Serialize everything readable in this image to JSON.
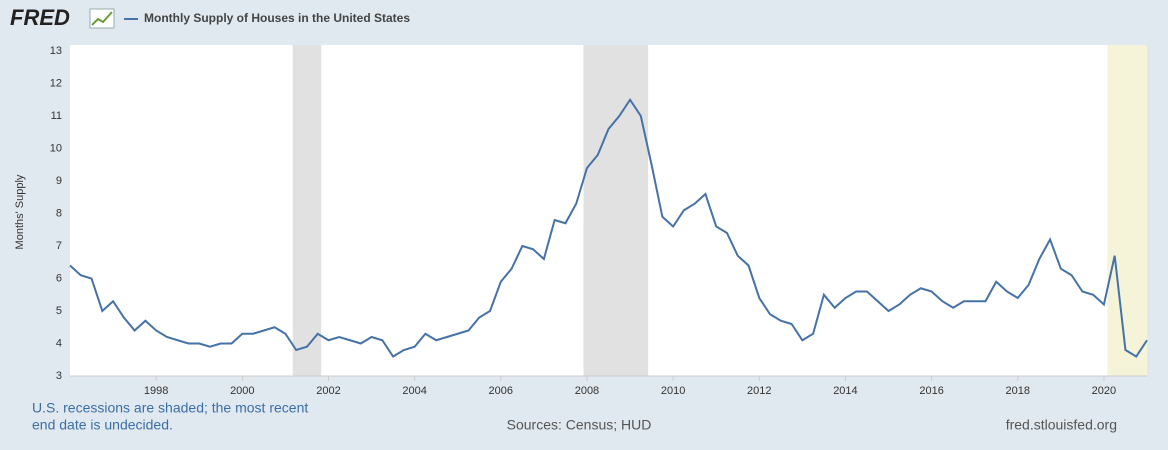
{
  "logo": "FRED",
  "chart_data": {
    "type": "line",
    "y_label": "Months' Supply",
    "series": [
      {
        "name": "Monthly Supply of Houses in the United States",
        "color": "#4572a7",
        "values": [
          6.4,
          6.1,
          6.0,
          5.0,
          5.3,
          4.8,
          4.4,
          4.7,
          4.4,
          4.2,
          4.1,
          4.0,
          4.0,
          3.9,
          4.0,
          4.0,
          4.3,
          4.3,
          4.4,
          4.5,
          4.3,
          3.8,
          3.9,
          4.3,
          4.1,
          4.2,
          4.1,
          4.0,
          4.2,
          4.1,
          3.6,
          3.8,
          3.9,
          4.3,
          4.1,
          4.2,
          4.3,
          4.4,
          4.8,
          5.0,
          5.9,
          6.3,
          7.0,
          6.9,
          6.6,
          7.8,
          7.7,
          8.3,
          9.4,
          9.8,
          10.6,
          11.0,
          11.5,
          11.0,
          9.5,
          7.9,
          7.6,
          8.1,
          8.3,
          8.6,
          7.6,
          7.4,
          6.7,
          6.4,
          5.4,
          4.9,
          4.7,
          4.6,
          4.1,
          4.3,
          5.5,
          5.1,
          5.4,
          5.6,
          5.6,
          5.3,
          5.0,
          5.2,
          5.5,
          5.7,
          5.6,
          5.3,
          5.1,
          5.3,
          5.3,
          5.3,
          5.9,
          5.6,
          5.4,
          5.8,
          6.6,
          7.2,
          6.3,
          6.1,
          5.6,
          5.5,
          5.2,
          6.7,
          3.8,
          3.6,
          4.1
        ]
      }
    ],
    "x": [
      1996,
      1996.25,
      1996.5,
      1996.75,
      1997,
      1997.25,
      1997.5,
      1997.75,
      1998,
      1998.25,
      1998.5,
      1998.75,
      1999,
      1999.25,
      1999.5,
      1999.75,
      2000,
      2000.25,
      2000.5,
      2000.75,
      2001,
      2001.25,
      2001.5,
      2001.75,
      2002,
      2002.25,
      2002.5,
      2002.75,
      2003,
      2003.25,
      2003.5,
      2003.75,
      2004,
      2004.25,
      2004.5,
      2004.75,
      2005,
      2005.25,
      2005.5,
      2005.75,
      2006,
      2006.25,
      2006.5,
      2006.75,
      2007,
      2007.25,
      2007.5,
      2007.75,
      2008,
      2008.25,
      2008.5,
      2008.75,
      2009,
      2009.25,
      2009.5,
      2009.75,
      2010,
      2010.25,
      2010.5,
      2010.75,
      2011,
      2011.25,
      2011.5,
      2011.75,
      2012,
      2012.25,
      2012.5,
      2012.75,
      2013,
      2013.25,
      2013.5,
      2013.75,
      2014,
      2014.25,
      2014.5,
      2014.75,
      2015,
      2015.25,
      2015.5,
      2015.75,
      2016,
      2016.25,
      2016.5,
      2016.75,
      2017,
      2017.25,
      2017.5,
      2017.75,
      2018,
      2018.25,
      2018.5,
      2018.75,
      2019,
      2019.25,
      2019.5,
      2019.75,
      2020,
      2020.25,
      2020.5,
      2020.75,
      2021
    ],
    "xlim": [
      1996,
      2021
    ],
    "xticks": [
      1998,
      2000,
      2002,
      2004,
      2006,
      2008,
      2010,
      2012,
      2014,
      2016,
      2018,
      2020
    ],
    "ylim": [
      3,
      13
    ],
    "yticks": [
      3,
      4,
      5,
      6,
      7,
      8,
      9,
      10,
      11,
      12,
      13
    ],
    "grid": false,
    "shaded": [
      {
        "start": 2001.17,
        "end": 2001.83,
        "color": "#e1e1e1"
      },
      {
        "start": 2007.92,
        "end": 2009.42,
        "color": "#e1e1e1"
      },
      {
        "start": 2020.08,
        "end": 2021,
        "color": "#f5f3d8"
      }
    ],
    "note": [
      "U.S. recessions are shaded; the most recent",
      "end date is undecided."
    ],
    "source": "Sources: Census; HUD",
    "site": "fred.stlouisfed.org"
  }
}
